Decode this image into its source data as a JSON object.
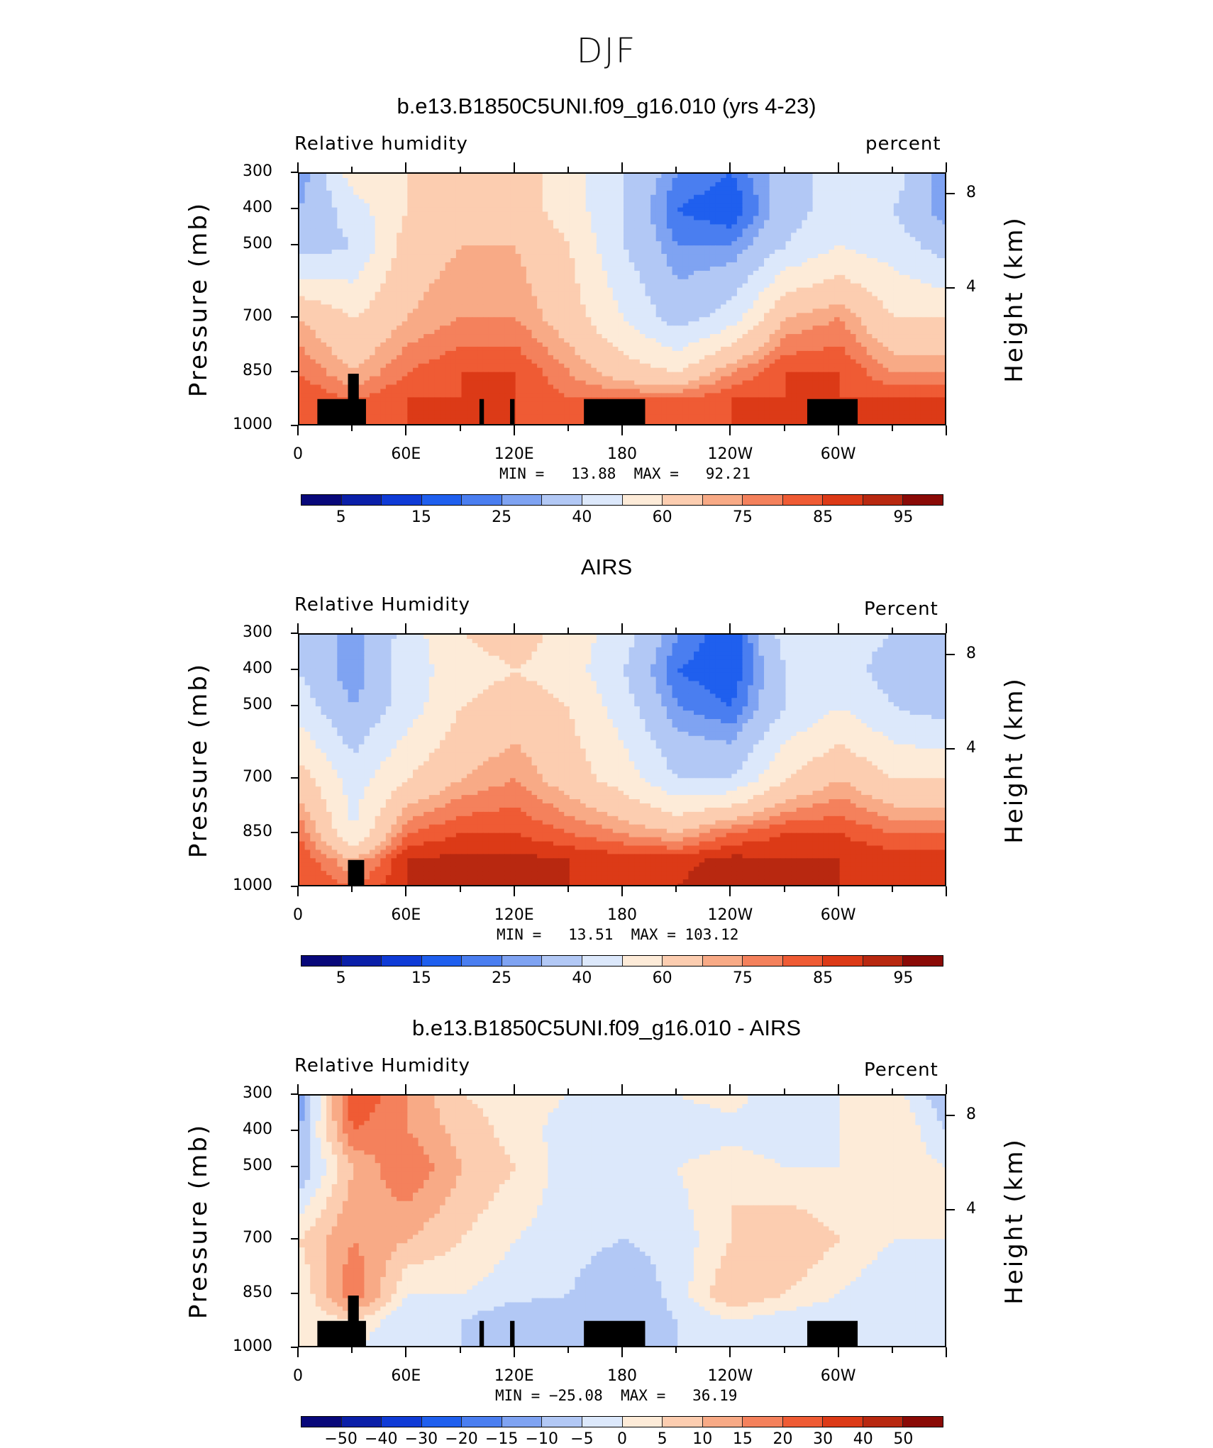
{
  "figure_title": "DJF",
  "panels": [
    {
      "title": "b.e13.B1850C5UNI.f09_g16.010 (yrs 4-23)",
      "left_label": "Relative  humidity",
      "right_label": "percent",
      "stats": "MIN =   13.88  MAX =   92.21",
      "colorbar": "rh"
    },
    {
      "title": "AIRS",
      "left_label": "Relative  Humidity",
      "right_label": "Percent",
      "stats": "MIN =   13.51  MAX = 103.12",
      "colorbar": "rh"
    },
    {
      "title": "b.e13.B1850C5UNI.f09_g16.010 - AIRS",
      "left_label": "Relative  Humidity",
      "right_label": "Percent",
      "stats": "MIN = −25.08  MAX =   36.19",
      "colorbar": "diff"
    }
  ],
  "axes": {
    "y_title": "Pressure  (mb)",
    "y_ticks": [
      "300",
      "400",
      "500",
      "700",
      "850",
      "1000"
    ],
    "y2_title": "Height  (km)",
    "y2_ticks": [
      "8",
      "4"
    ],
    "x_ticks": [
      "0",
      "60E",
      "120E",
      "180",
      "120W",
      "60W"
    ]
  },
  "colorbars": {
    "rh": {
      "labels": [
        "5",
        "15",
        "25",
        "40",
        "60",
        "75",
        "85",
        "95"
      ],
      "colors": [
        "#08087a",
        "#0a1fa8",
        "#0f3bd6",
        "#1f5fee",
        "#4a7ef0",
        "#7fa3f2",
        "#b2c8f5",
        "#dce8fb",
        "#fdebd8",
        "#fccdb0",
        "#f8aa86",
        "#f4815c",
        "#ef5b34",
        "#dc3a17",
        "#b82810",
        "#8a0a06"
      ]
    },
    "diff": {
      "labels": [
        "−50",
        "−40",
        "−30",
        "−20",
        "−15",
        "−10",
        "−5",
        "0",
        "5",
        "10",
        "15",
        "20",
        "30",
        "40",
        "50"
      ],
      "colors": [
        "#08087a",
        "#0a1fa8",
        "#0f3bd6",
        "#1f5fee",
        "#4a7ef0",
        "#7fa3f2",
        "#b2c8f5",
        "#dce8fb",
        "#fdebd8",
        "#fccdb0",
        "#f8aa86",
        "#f4815c",
        "#ef5b34",
        "#dc3a17",
        "#b82810",
        "#8a0a06"
      ]
    }
  },
  "chart_data": [
    {
      "type": "heatmap",
      "title": "b.e13.B1850C5UNI.f09_g16.010 (yrs 4-23)",
      "xlabel": "",
      "ylabel": "Pressure  (mb)",
      "y2label": "Height  (km)",
      "x": [
        0,
        30,
        60,
        90,
        120,
        150,
        180,
        210,
        240,
        270,
        300,
        330,
        360
      ],
      "y": [
        300,
        400,
        500,
        700,
        850,
        925,
        1000
      ],
      "z": [
        [
          25,
          55,
          60,
          65,
          65,
          55,
          40,
          25,
          20,
          35,
          45,
          45,
          25
        ],
        [
          30,
          45,
          60,
          65,
          65,
          55,
          40,
          20,
          15,
          35,
          45,
          40,
          25
        ],
        [
          35,
          40,
          65,
          70,
          70,
          60,
          40,
          25,
          25,
          40,
          50,
          45,
          35
        ],
        [
          70,
          60,
          70,
          75,
          75,
          65,
          50,
          35,
          45,
          70,
          75,
          60,
          60
        ],
        [
          80,
          70,
          80,
          85,
          85,
          75,
          65,
          60,
          75,
          85,
          85,
          75,
          75
        ],
        [
          85,
          80,
          85,
          85,
          85,
          80,
          80,
          80,
          85,
          85,
          85,
          85,
          85
        ],
        [
          85,
          85,
          85,
          85,
          85,
          85,
          85,
          85,
          85,
          85,
          85,
          85,
          85
        ]
      ]
    },
    {
      "type": "heatmap",
      "title": "AIRS",
      "xlabel": "",
      "ylabel": "Pressure  (mb)",
      "y2label": "Height  (km)",
      "x": [
        0,
        30,
        60,
        90,
        120,
        150,
        180,
        210,
        240,
        270,
        300,
        330,
        360
      ],
      "y": [
        300,
        400,
        500,
        700,
        850,
        925,
        1000
      ],
      "z": [
        [
          40,
          25,
          45,
          60,
          65,
          55,
          45,
          25,
          15,
          45,
          45,
          40,
          35
        ],
        [
          40,
          25,
          45,
          55,
          60,
          55,
          40,
          20,
          15,
          40,
          45,
          35,
          30
        ],
        [
          45,
          30,
          45,
          60,
          65,
          60,
          45,
          25,
          20,
          40,
          50,
          40,
          35
        ],
        [
          65,
          45,
          60,
          70,
          75,
          65,
          55,
          40,
          40,
          60,
          70,
          60,
          60
        ],
        [
          80,
          50,
          80,
          85,
          85,
          80,
          75,
          70,
          80,
          85,
          85,
          80,
          80
        ],
        [
          85,
          70,
          90,
          92,
          92,
          90,
          88,
          88,
          92,
          90,
          90,
          88,
          88
        ],
        [
          85,
          80,
          90,
          90,
          90,
          90,
          88,
          90,
          95,
          95,
          90,
          90,
          90
        ]
      ]
    },
    {
      "type": "heatmap",
      "title": "b.e13.B1850C5UNI.f09_g16.010 - AIRS",
      "xlabel": "",
      "ylabel": "Pressure  (mb)",
      "y2label": "Height  (km)",
      "x": [
        0,
        30,
        60,
        90,
        120,
        150,
        180,
        210,
        240,
        270,
        300,
        330,
        360
      ],
      "y": [
        300,
        400,
        500,
        700,
        850,
        925,
        1000
      ],
      "z": [
        [
          -15,
          25,
          15,
          5,
          3,
          0,
          -3,
          0,
          3,
          -5,
          0,
          3,
          -10
        ],
        [
          -10,
          20,
          15,
          8,
          3,
          -3,
          -3,
          -5,
          -3,
          -5,
          0,
          5,
          -5
        ],
        [
          -10,
          10,
          20,
          10,
          5,
          -3,
          -5,
          0,
          5,
          0,
          0,
          3,
          0
        ],
        [
          5,
          15,
          10,
          5,
          0,
          -3,
          -5,
          -3,
          5,
          10,
          5,
          0,
          0
        ],
        [
          0,
          20,
          0,
          0,
          -3,
          -5,
          -10,
          -3,
          10,
          5,
          0,
          -5,
          -5
        ],
        [
          0,
          5,
          -5,
          -5,
          -10,
          -10,
          -10,
          -5,
          0,
          -3,
          -5,
          -5,
          -5
        ],
        [
          0,
          0,
          -5,
          -5,
          -10,
          -10,
          -10,
          -5,
          -3,
          -5,
          -5,
          -5,
          -5
        ]
      ]
    }
  ]
}
